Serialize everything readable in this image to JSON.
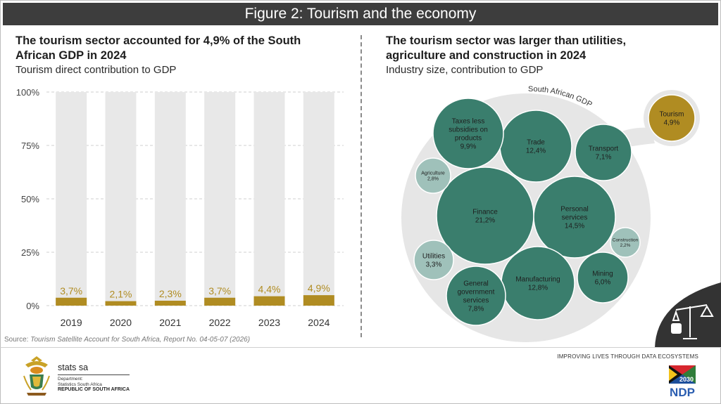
{
  "title": "Figure 2: Tourism and the economy",
  "left": {
    "heading": "The tourism sector accounted for 4,9% of the South African GDP in 2024",
    "subheading": "Tourism direct contribution to GDP"
  },
  "right": {
    "heading": "The tourism sector was larger than utilities, agriculture and construction in 2024",
    "subheading": "Industry size, contribution to GDP",
    "gdp_label": "South African GDP"
  },
  "source": {
    "label": "Source:",
    "text": "Tourism Satellite Account for South Africa, Report No. 04-05-07 (2026)"
  },
  "footer": {
    "tagline": "IMPROVING LIVES THROUGH DATA ECOSYSTEMS",
    "stats_logo": "stats sa",
    "dept_line1": "Department:",
    "dept_line2": "Statistics South Africa",
    "country": "REPUBLIC OF SOUTH AFRICA",
    "ndp_year": "2030",
    "ndp_text": "NDP"
  },
  "colors": {
    "gold": "#b08c22",
    "bar_bg": "#e8e8e8",
    "teal_dark": "#3a7e6d",
    "teal_light": "#9fc1ba",
    "big_circle": "#e6e6e6"
  },
  "chart_data": [
    {
      "type": "bar",
      "title": "Tourism direct contribution to GDP",
      "categories": [
        "2019",
        "2020",
        "2021",
        "2022",
        "2023",
        "2024"
      ],
      "values": [
        3.7,
        2.1,
        2.3,
        3.7,
        4.4,
        4.9
      ],
      "value_labels": [
        "3,7%",
        "2,1%",
        "2,3%",
        "3,7%",
        "4,4%",
        "4,9%"
      ],
      "ylim": [
        0,
        100
      ],
      "yticks": [
        "0%",
        "25%",
        "50%",
        "75%",
        "100%"
      ],
      "ytick_values": [
        0,
        25,
        50,
        75,
        100
      ],
      "grid": true
    },
    {
      "type": "bubble",
      "title": "Industry size, contribution to GDP",
      "series": [
        {
          "name": "Finance",
          "value": 21.2,
          "label": "21,2%"
        },
        {
          "name": "Personal services",
          "value": 14.5,
          "label": "14,5%"
        },
        {
          "name": "Manufacturing",
          "value": 12.8,
          "label": "12,8%"
        },
        {
          "name": "Trade",
          "value": 12.4,
          "label": "12,4%"
        },
        {
          "name": "Taxes less subsidies on products",
          "value": 9.9,
          "label": "9,9%"
        },
        {
          "name": "General government services",
          "value": 7.8,
          "label": "7,8%"
        },
        {
          "name": "Transport",
          "value": 7.1,
          "label": "7,1%"
        },
        {
          "name": "Mining",
          "value": 6.0,
          "label": "6,0%"
        },
        {
          "name": "Utilities",
          "value": 3.3,
          "label": "3,3%"
        },
        {
          "name": "Agriculture",
          "value": 2.8,
          "label": "2,8%"
        },
        {
          "name": "Construction",
          "value": 2.2,
          "label": "2,2%"
        },
        {
          "name": "Tourism",
          "value": 4.9,
          "label": "4,9%"
        }
      ]
    }
  ]
}
